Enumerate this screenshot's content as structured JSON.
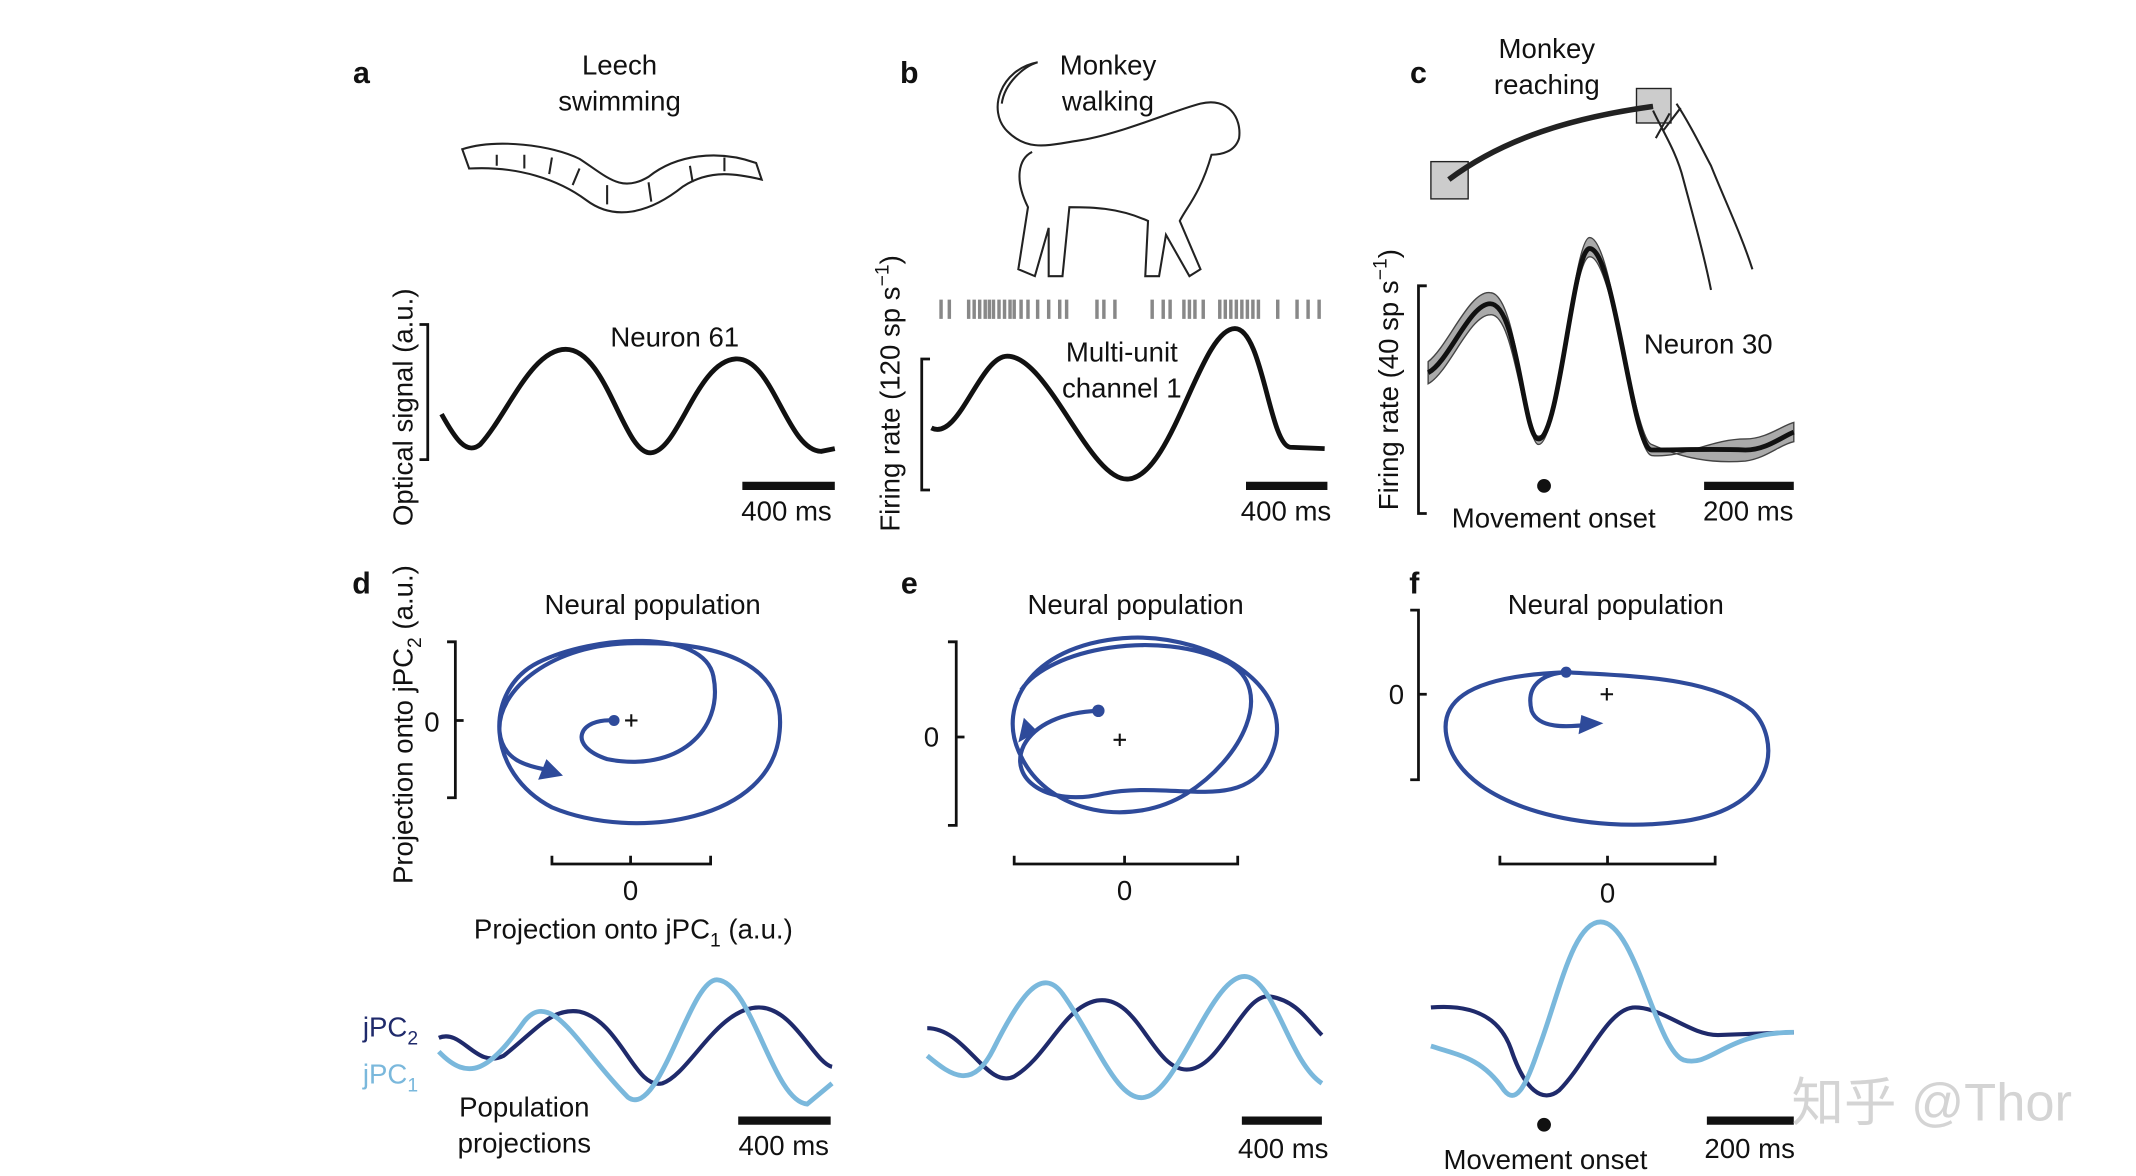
{
  "panels": [
    {
      "letter": "a",
      "title": [
        "Leech",
        "swimming"
      ],
      "y_label": "Optical signal (a.u.)",
      "trace_label": "Neuron 61",
      "scale_bar": "400 ms"
    },
    {
      "letter": "b",
      "title": [
        "Monkey",
        "walking"
      ],
      "y_label": [
        "Firing rate (120 sp s",
        "−1",
        ")"
      ],
      "trace_label": [
        "Multi-unit",
        "channel 1"
      ],
      "scale_bar": "400 ms"
    },
    {
      "letter": "c",
      "title": [
        "Monkey",
        "reaching"
      ],
      "y_label": [
        "Firing rate (40 sp s",
        "−1",
        ")"
      ],
      "trace_label": "Neuron 30",
      "event_label": "Movement onset",
      "scale_bar": "200 ms"
    },
    {
      "letter": "d",
      "title": "Neural population",
      "y_label": [
        "Projection onto jPC",
        "2",
        " (a.u.)"
      ],
      "y_zero": "0",
      "x_zero": "0",
      "x_label": [
        "Projection onto jPC",
        "1",
        " (a.u.)"
      ],
      "legend": [
        [
          "jPC",
          "2"
        ],
        [
          "jPC",
          "1"
        ]
      ],
      "trace_label": [
        "Population",
        "projections"
      ],
      "scale_bar": "400 ms"
    },
    {
      "letter": "e",
      "title": "Neural population",
      "y_zero": "0",
      "x_zero": "0",
      "scale_bar": "400 ms"
    },
    {
      "letter": "f",
      "title": "Neural population",
      "y_zero": "0",
      "x_zero": "0",
      "event_label": "Movement onset",
      "scale_bar": "200 ms"
    }
  ],
  "watermark": "知乎 @Thor"
}
